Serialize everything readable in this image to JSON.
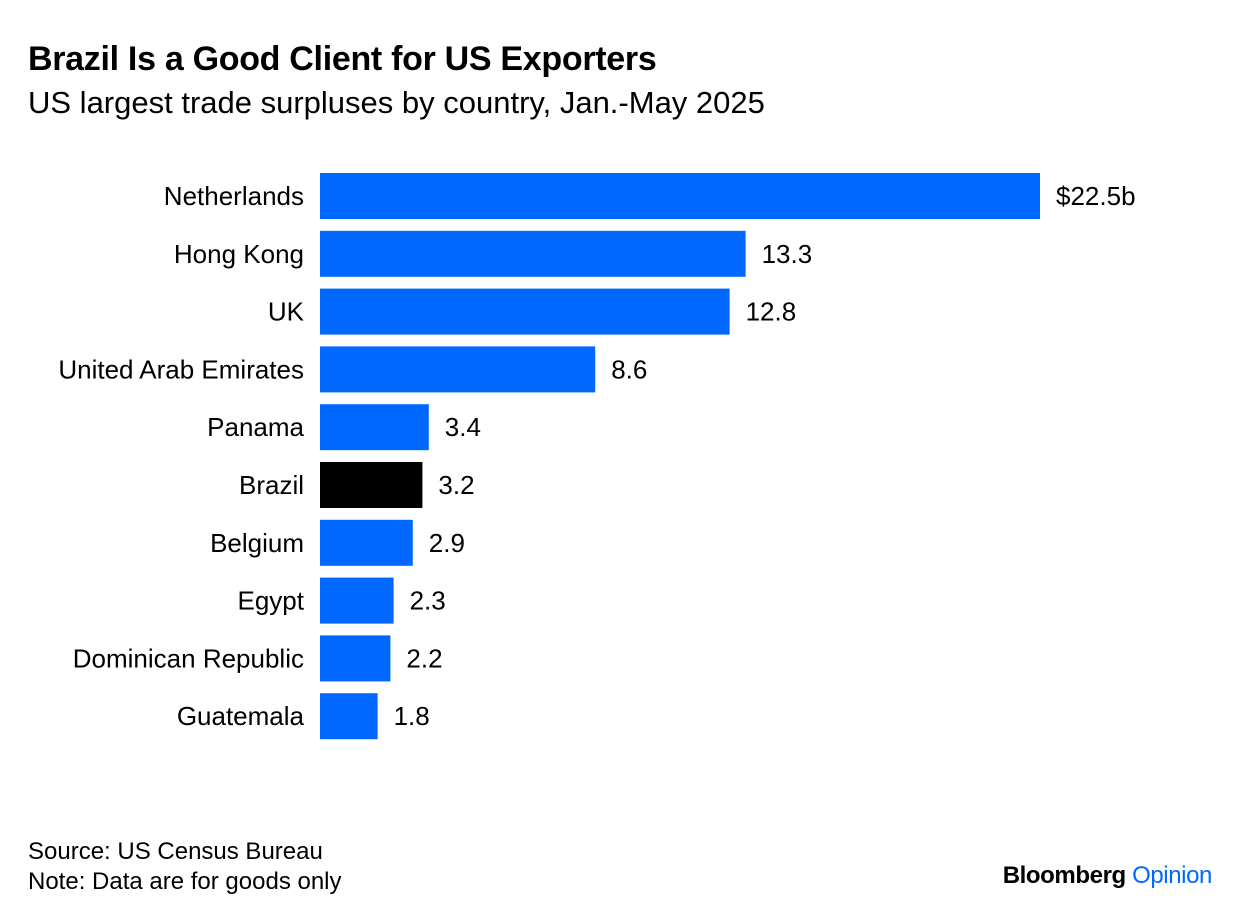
{
  "header": {
    "title": "Brazil Is a Good Client for US Exporters",
    "subtitle": "US largest trade surpluses by country, Jan.-May 2025"
  },
  "footer": {
    "source": "Source: US Census Bureau",
    "note": "Note: Data are for goods only",
    "brand_primary": "Bloomberg",
    "brand_secondary": "Opinion"
  },
  "colors": {
    "bar": "#0068ff",
    "highlight_bar": "#000000",
    "text": "#000000",
    "brand_accent": "#0068ff"
  },
  "chart_data": {
    "type": "bar",
    "orientation": "horizontal",
    "title": "Brazil Is a Good Client for US Exporters",
    "subtitle": "US largest trade surpluses by country, Jan.-May 2025",
    "categories": [
      "Netherlands",
      "Hong Kong",
      "UK",
      "United Arab Emirates",
      "Panama",
      "Brazil",
      "Belgium",
      "Egypt",
      "Dominican Republic",
      "Guatemala"
    ],
    "values": [
      22.5,
      13.3,
      12.8,
      8.6,
      3.4,
      3.2,
      2.9,
      2.3,
      2.2,
      1.8
    ],
    "value_labels": [
      "$22.5b",
      "13.3",
      "12.8",
      "8.6",
      "3.4",
      "3.2",
      "2.9",
      "2.3",
      "2.2",
      "1.8"
    ],
    "highlight": "Brazil",
    "unit": "$b",
    "xlim": [
      0,
      22.5
    ],
    "grid": false,
    "legend": "none"
  }
}
